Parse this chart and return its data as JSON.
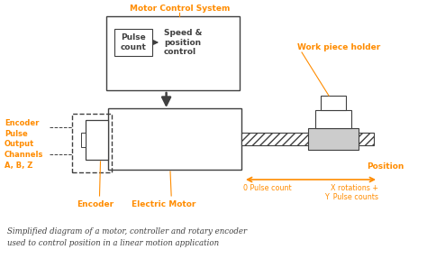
{
  "bg_color": "#ffffff",
  "orange_color": "#FF8C00",
  "dark_color": "#404040",
  "title": "Motor Control System",
  "label_encoder_pulse": "Encoder\nPulse\nOutput\nChannels\nA, B, Z",
  "label_encoder": "Encoder",
  "label_motor": "Electric Motor",
  "label_pulse_count_box": "Pulse\ncount",
  "label_speed_pos": "Speed &\nposition\ncontrol",
  "label_work_piece": "Work piece holder",
  "label_position": "Position",
  "label_0_pulse": "0 Pulse count",
  "label_x_rot": "X rotations +\nY  Pulse counts",
  "caption_line1": "Simplified diagram of a motor, controller and rotary encoder",
  "caption_line2": "used to control position in a linear motion application"
}
